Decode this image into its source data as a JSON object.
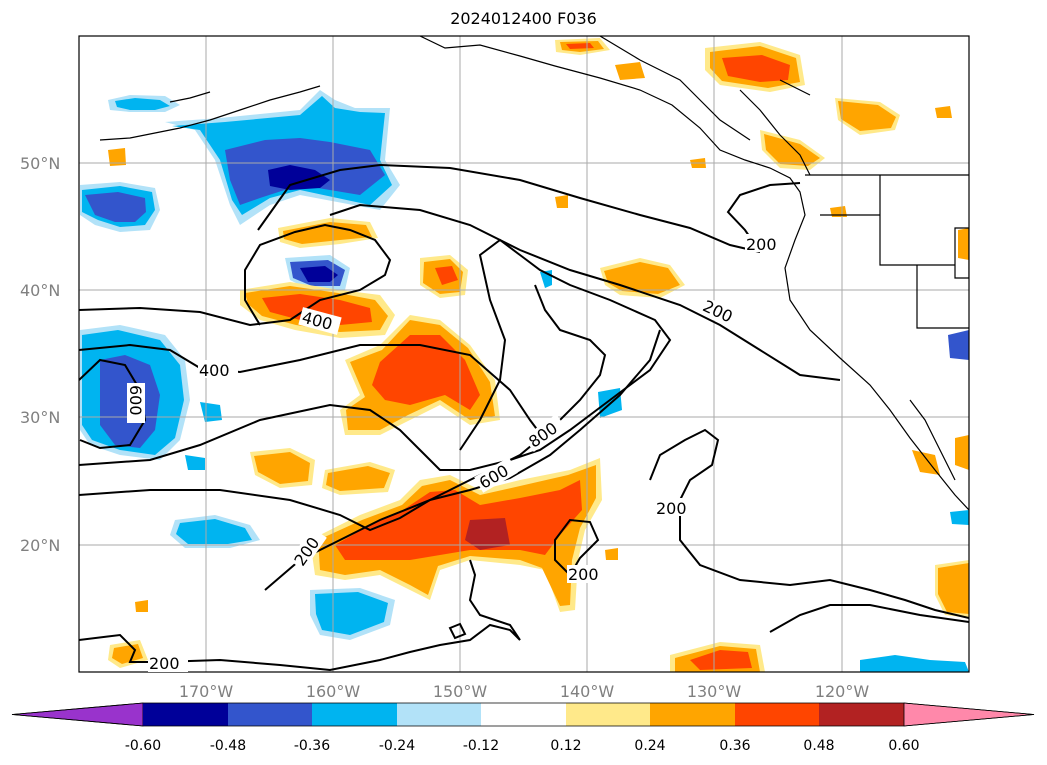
{
  "title": "2024012400 F036",
  "lat_labels": [
    "50°N",
    "40°N",
    "30°N",
    "20°N"
  ],
  "lon_labels": [
    "170°W",
    "160°W",
    "150°W",
    "140°W",
    "130°W",
    "120°W"
  ],
  "contour_labels": [
    "200",
    "200",
    "200",
    "200",
    "200",
    "200",
    "400",
    "400",
    "600",
    "600",
    "800"
  ],
  "colorbar": {
    "ticks": [
      "-0.60",
      "-0.48",
      "-0.36",
      "-0.24",
      "-0.12",
      "0.12",
      "0.24",
      "0.36",
      "0.48",
      "0.60"
    ],
    "colors": [
      "#9933cc",
      "#000099",
      "#3355cc",
      "#00b4f0",
      "#b2e2f8",
      "#ffffff",
      "#ffe98a",
      "#ffa500",
      "#ff4500",
      "#b22222",
      "#ff88aa"
    ]
  },
  "colors": {
    "contour_line": "#000000",
    "grid": "#aaaaaa",
    "coast": "#000000"
  }
}
